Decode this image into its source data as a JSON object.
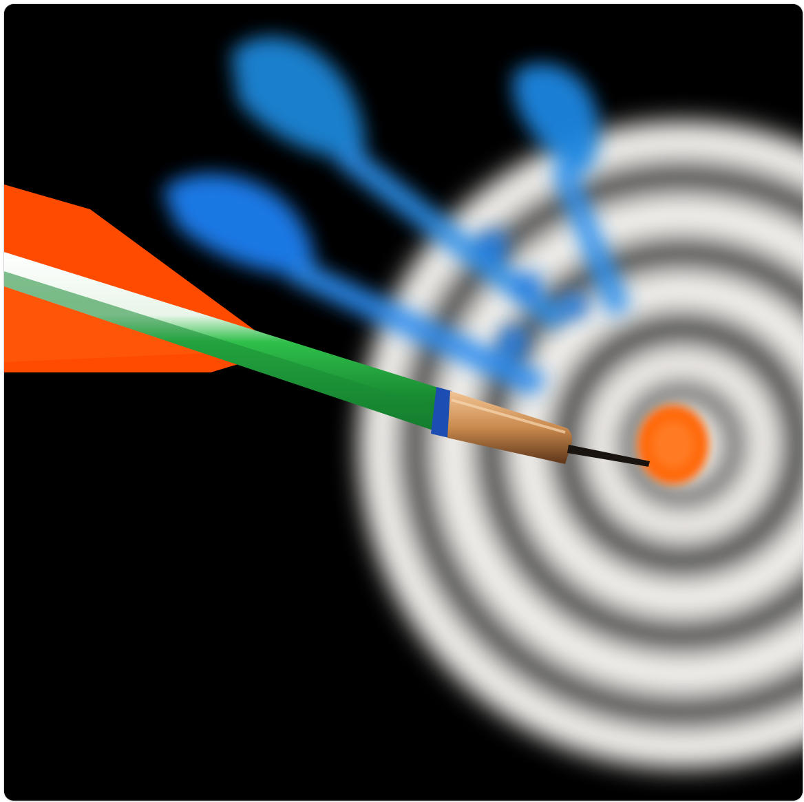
{
  "image": {
    "subject": "dart-hitting-target",
    "icons": {
      "bullseye": "bullseye-icon",
      "foreground_dart": "dart-icon"
    },
    "colors": {
      "background": "#000000",
      "ring_light": "#f4f2ee",
      "ring_dark": "#4a4a48",
      "bullseye": "#ff6a10",
      "flight_foreground": "#ff4b00",
      "shaft": "#1f9a3a",
      "barrel": "#c98a4e",
      "blurred_darts": "#1e86e8"
    }
  }
}
